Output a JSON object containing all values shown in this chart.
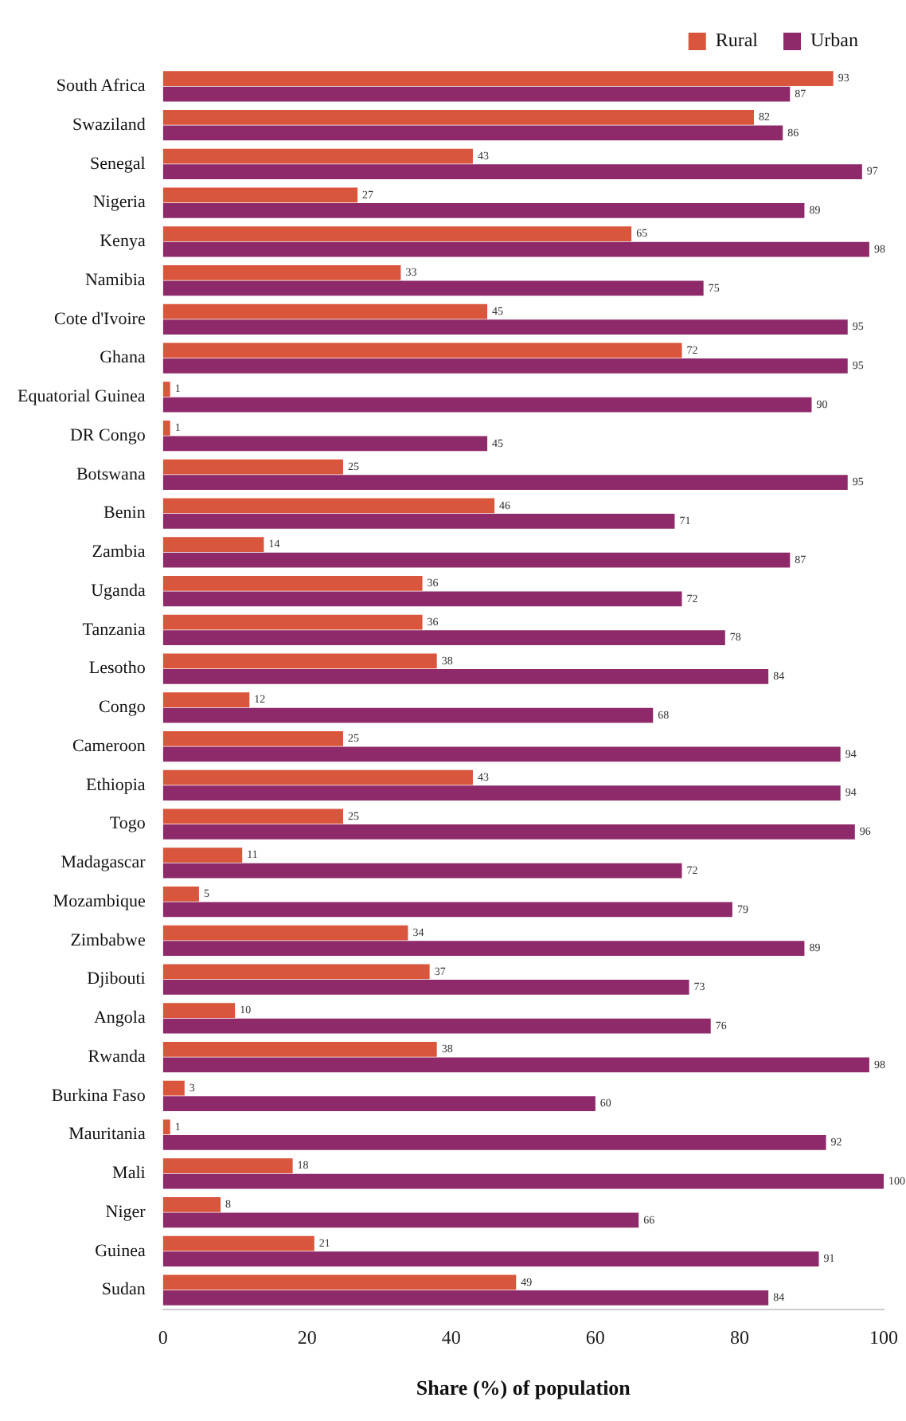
{
  "chart_data": {
    "type": "bar",
    "orientation": "horizontal",
    "xlabel": "Share (%) of population",
    "categories": [
      "South Africa",
      "Swaziland",
      "Senegal",
      "Nigeria",
      "Kenya",
      "Namibia",
      "Cote d'Ivoire",
      "Ghana",
      "Equatorial Guinea",
      "DR Congo",
      "Botswana",
      "Benin",
      "Zambia",
      "Uganda",
      "Tanzania",
      "Lesotho",
      "Congo",
      "Cameroon",
      "Ethiopia",
      "Togo",
      "Madagascar",
      "Mozambique",
      "Zimbabwe",
      "Djibouti",
      "Angola",
      "Rwanda",
      "Burkina Faso",
      "Mauritania",
      "Mali",
      "Niger",
      "Guinea",
      "Sudan"
    ],
    "series": [
      {
        "name": "Rural",
        "color": "#d9553b",
        "values": [
          93,
          82,
          43,
          27,
          65,
          33,
          45,
          72,
          1,
          1,
          25,
          46,
          14,
          36,
          36,
          38,
          12,
          25,
          43,
          25,
          11,
          5,
          34,
          37,
          10,
          38,
          3,
          1,
          18,
          8,
          21,
          49
        ]
      },
      {
        "name": "Urban",
        "color": "#8e2a6a",
        "values": [
          87,
          86,
          97,
          89,
          98,
          75,
          95,
          95,
          90,
          45,
          95,
          71,
          87,
          72,
          78,
          84,
          68,
          94,
          94,
          96,
          72,
          79,
          89,
          73,
          76,
          98,
          60,
          92,
          100,
          66,
          91,
          84
        ]
      }
    ],
    "xlim": [
      0,
      100
    ],
    "xticks": [
      0,
      20,
      40,
      60,
      80,
      100
    ],
    "data_labels": true,
    "legend": "top right",
    "grid": false
  }
}
